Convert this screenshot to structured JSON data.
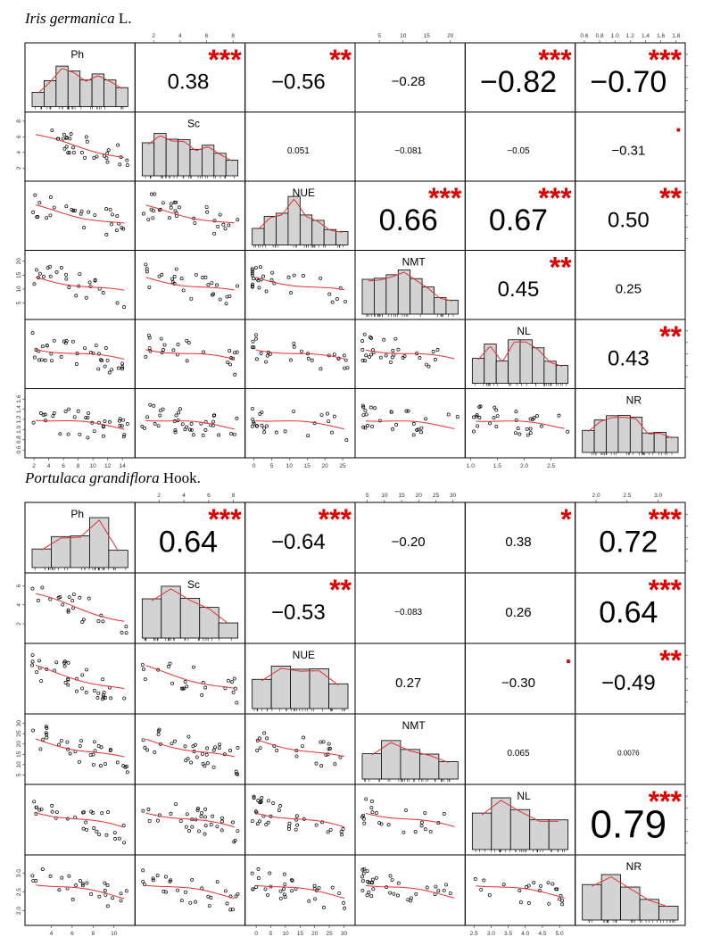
{
  "panels": [
    {
      "title_italic": "Iris germanica",
      "title_rest": " L.",
      "chart_data": {
        "type": "scatter",
        "variables": [
          "Ph",
          "Sc",
          "NUE",
          "NMT",
          "NL",
          "NR"
        ],
        "correlations": [
          {
            "row": 0,
            "col": 1,
            "r": "0.38",
            "sig": "***",
            "size": "medium"
          },
          {
            "row": 0,
            "col": 2,
            "r": "−0.56",
            "sig": "**",
            "size": "medium"
          },
          {
            "row": 0,
            "col": 3,
            "r": "−0.28",
            "sig": "",
            "size": "small"
          },
          {
            "row": 0,
            "col": 4,
            "r": "−0.82",
            "sig": "***",
            "size": "large"
          },
          {
            "row": 0,
            "col": 5,
            "r": "−0.70",
            "sig": "***",
            "size": "large"
          },
          {
            "row": 1,
            "col": 2,
            "r": "0.051",
            "sig": "",
            "size": "tiny"
          },
          {
            "row": 1,
            "col": 3,
            "r": "−0.081",
            "sig": "",
            "size": "tiny"
          },
          {
            "row": 1,
            "col": 4,
            "r": "−0.05",
            "sig": "",
            "size": "tiny"
          },
          {
            "row": 1,
            "col": 5,
            "r": "−0.31",
            "sig": ".",
            "size": "small"
          },
          {
            "row": 2,
            "col": 3,
            "r": "0.66",
            "sig": "***",
            "size": "large"
          },
          {
            "row": 2,
            "col": 4,
            "r": "0.67",
            "sig": "***",
            "size": "large"
          },
          {
            "row": 2,
            "col": 5,
            "r": "0.50",
            "sig": "**",
            "size": "medium"
          },
          {
            "row": 3,
            "col": 4,
            "r": "0.45",
            "sig": "**",
            "size": "medium"
          },
          {
            "row": 3,
            "col": 5,
            "r": "0.25",
            "sig": "",
            "size": "small"
          },
          {
            "row": 4,
            "col": 5,
            "r": "0.43",
            "sig": "**",
            "size": "medium"
          }
        ],
        "top_axes": [
          {
            "col": 1,
            "ticks": [
              "2",
              "4",
              "6",
              "8"
            ],
            "range": [
              1,
              8.5
            ]
          },
          {
            "col": 3,
            "ticks": [
              "5",
              "10",
              "15",
              "20"
            ],
            "range": [
              1,
              22
            ]
          },
          {
            "col": 5,
            "ticks": [
              "0.6",
              "0.8",
              "1.0",
              "1.2",
              "1.4",
              "1.6",
              "1.8"
            ],
            "range": [
              0.55,
              1.85
            ]
          }
        ],
        "bottom_axes": [
          {
            "col": 0,
            "ticks": [
              "2",
              "4",
              "6",
              "8",
              "10",
              "12",
              "14"
            ],
            "range": [
              1.5,
              15
            ]
          },
          {
            "col": 2,
            "ticks": [
              "0",
              "5",
              "10",
              "15",
              "20",
              "25"
            ],
            "range": [
              -1,
              27
            ]
          },
          {
            "col": 4,
            "ticks": [
              "1.0",
              "1.5",
              "2.0",
              "2.5"
            ],
            "range": [
              1.0,
              2.85
            ]
          }
        ],
        "left_axes": [
          {
            "row": 1,
            "ticks": [
              "2",
              "4",
              "6",
              "8"
            ],
            "range": [
              1,
              8.5
            ]
          },
          {
            "row": 3,
            "ticks": [
              "5",
              "10",
              "15",
              "20"
            ],
            "range": [
              1,
              22
            ]
          },
          {
            "row": 5,
            "ticks": [
              "0.6",
              "0.8",
              "1.0",
              "1.2",
              "1.4",
              "1.6"
            ],
            "range": [
              0.55,
              1.7
            ]
          }
        ]
      }
    },
    {
      "title_italic": "Portulaca grandiflora",
      "title_rest": " Hook.",
      "chart_data": {
        "type": "scatter",
        "variables": [
          "Ph",
          "Sc",
          "NUE",
          "NMT",
          "NL",
          "NR"
        ],
        "correlations": [
          {
            "row": 0,
            "col": 1,
            "r": "0.64",
            "sig": "***",
            "size": "large"
          },
          {
            "row": 0,
            "col": 2,
            "r": "−0.64",
            "sig": "***",
            "size": "medium"
          },
          {
            "row": 0,
            "col": 3,
            "r": "−0.20",
            "sig": "",
            "size": "small"
          },
          {
            "row": 0,
            "col": 4,
            "r": "0.38",
            "sig": "*",
            "size": "small"
          },
          {
            "row": 0,
            "col": 5,
            "r": "0.72",
            "sig": "***",
            "size": "large"
          },
          {
            "row": 1,
            "col": 2,
            "r": "−0.53",
            "sig": "**",
            "size": "medium"
          },
          {
            "row": 1,
            "col": 3,
            "r": "−0.083",
            "sig": "",
            "size": "tiny"
          },
          {
            "row": 1,
            "col": 4,
            "r": "0.26",
            "sig": "",
            "size": "small"
          },
          {
            "row": 1,
            "col": 5,
            "r": "0.64",
            "sig": "***",
            "size": "large"
          },
          {
            "row": 2,
            "col": 3,
            "r": "0.27",
            "sig": "",
            "size": "small"
          },
          {
            "row": 2,
            "col": 4,
            "r": "−0.30",
            "sig": ".",
            "size": "small"
          },
          {
            "row": 2,
            "col": 5,
            "r": "−0.49",
            "sig": "**",
            "size": "medium"
          },
          {
            "row": 3,
            "col": 4,
            "r": "0.065",
            "sig": "",
            "size": "tiny"
          },
          {
            "row": 3,
            "col": 5,
            "r": "0.0076",
            "sig": "",
            "size": "micro"
          },
          {
            "row": 4,
            "col": 5,
            "r": "0.79",
            "sig": "***",
            "size": "xlarge"
          }
        ],
        "top_axes": [
          {
            "col": 1,
            "ticks": [
              "2",
              "4",
              "6",
              "8"
            ],
            "range": [
              0.5,
              8.5
            ]
          },
          {
            "col": 3,
            "ticks": [
              "5",
              "10",
              "15",
              "20",
              "25",
              "30"
            ],
            "range": [
              3,
              32
            ]
          },
          {
            "col": 5,
            "ticks": [
              "2.0",
              "2.5",
              "3.0"
            ],
            "range": [
              1.75,
              3.35
            ]
          }
        ],
        "bottom_axes": [
          {
            "col": 0,
            "ticks": [
              "4",
              "6",
              "8",
              "10"
            ],
            "range": [
              2,
              11.5
            ]
          },
          {
            "col": 2,
            "ticks": [
              "0",
              "5",
              "10",
              "15",
              "20",
              "25",
              "30"
            ],
            "range": [
              -2,
              32
            ]
          },
          {
            "col": 4,
            "ticks": [
              "2.5",
              "3.0",
              "3.5",
              "4.0",
              "4.5",
              "5.0"
            ],
            "range": [
              2.4,
              5.3
            ]
          }
        ],
        "left_axes": [
          {
            "row": 1,
            "ticks": [
              "2",
              "4",
              "6"
            ],
            "range": [
              0.5,
              6.8
            ]
          },
          {
            "row": 3,
            "ticks": [
              "5",
              "10",
              "15",
              "20",
              "25",
              "30"
            ],
            "range": [
              3,
              32
            ]
          },
          {
            "row": 5,
            "ticks": [
              "2.0",
              "2.5",
              "3.0"
            ],
            "range": [
              1.75,
              3.35
            ]
          }
        ]
      }
    }
  ]
}
